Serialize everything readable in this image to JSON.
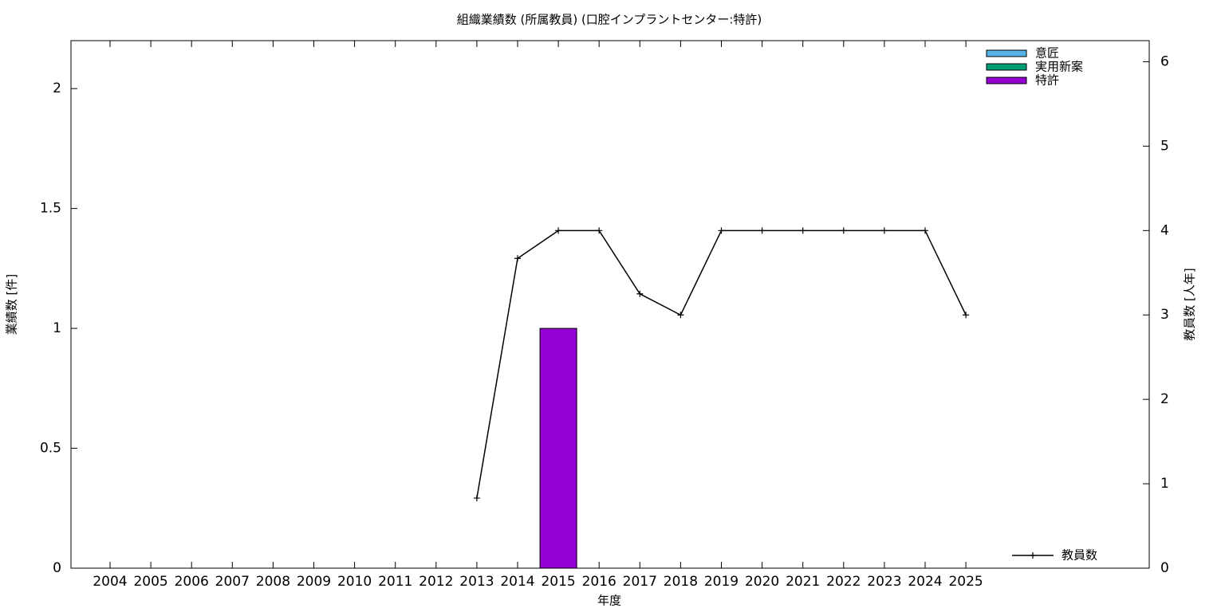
{
  "chart_data": {
    "type": "bar",
    "title": "組織業績数 (所属教員) (口腔インプラントセンター:特許)",
    "x_label": "年度",
    "y_label": "業績数 [件]",
    "y2_label": "教員数 [人年]",
    "categories": [
      "2004",
      "2005",
      "2006",
      "2007",
      "2008",
      "2009",
      "2010",
      "2011",
      "2012",
      "2013",
      "2014",
      "2015",
      "2016",
      "2017",
      "2018",
      "2019",
      "2020",
      "2021",
      "2022",
      "2023",
      "2024",
      "2025"
    ],
    "series": [
      {
        "name": "意匠",
        "color": "#56b4e9",
        "values": [
          0,
          0,
          0,
          0,
          0,
          0,
          0,
          0,
          0,
          0,
          0,
          0,
          0,
          0,
          0,
          0,
          0,
          0,
          0,
          0,
          0,
          0
        ]
      },
      {
        "name": "実用新案",
        "color": "#009e73",
        "values": [
          0,
          0,
          0,
          0,
          0,
          0,
          0,
          0,
          0,
          0,
          0,
          0,
          0,
          0,
          0,
          0,
          0,
          0,
          0,
          0,
          0,
          0
        ]
      },
      {
        "name": "特許",
        "color": "#9400d3",
        "values": [
          0,
          0,
          0,
          0,
          0,
          0,
          0,
          0,
          0,
          0,
          0,
          1,
          0,
          0,
          0,
          0,
          0,
          0,
          0,
          0,
          0,
          0
        ]
      },
      {
        "name": "教員数",
        "color": "#000000",
        "type": "line",
        "axis": "y2",
        "values": [
          null,
          null,
          null,
          null,
          null,
          null,
          null,
          null,
          null,
          0.83,
          3.67,
          4,
          4,
          3.25,
          3,
          4,
          4,
          4,
          4,
          4,
          4,
          3
        ]
      }
    ],
    "ylim": [
      0,
      2.2
    ],
    "yticks": [
      0,
      0.5,
      1,
      1.5,
      2
    ],
    "y2lim": [
      0,
      6.25
    ],
    "y2ticks": [
      0,
      1,
      2,
      3,
      4,
      5,
      6
    ],
    "stacked": true,
    "grid": false,
    "legend": "top-right"
  }
}
